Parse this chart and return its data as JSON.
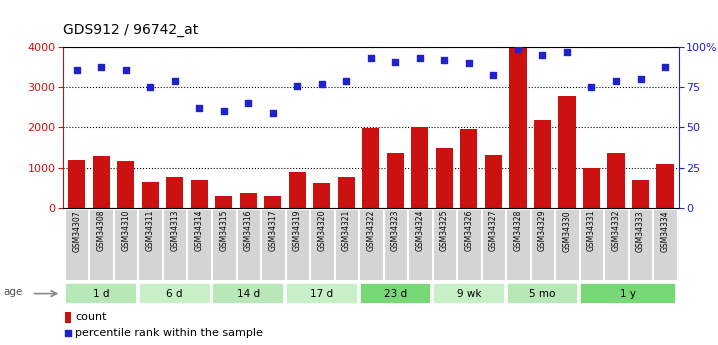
{
  "title": "GDS912 / 96742_at",
  "samples": [
    "GSM34307",
    "GSM34308",
    "GSM34310",
    "GSM34311",
    "GSM34313",
    "GSM34314",
    "GSM34315",
    "GSM34316",
    "GSM34317",
    "GSM34319",
    "GSM34320",
    "GSM34321",
    "GSM34322",
    "GSM34323",
    "GSM34324",
    "GSM34325",
    "GSM34326",
    "GSM34327",
    "GSM34328",
    "GSM34329",
    "GSM34330",
    "GSM34331",
    "GSM34332",
    "GSM34333",
    "GSM34334"
  ],
  "counts": [
    1200,
    1300,
    1175,
    640,
    760,
    680,
    300,
    375,
    300,
    880,
    620,
    760,
    1980,
    1360,
    2000,
    1500,
    1970,
    1310,
    4000,
    2180,
    2780,
    1000,
    1360,
    680,
    1100
  ],
  "percentile": [
    86,
    88,
    86,
    75,
    79,
    62,
    60,
    65,
    59,
    76,
    77,
    79,
    93,
    91,
    93,
    92,
    90,
    83,
    99,
    95,
    97,
    75,
    79,
    80,
    88
  ],
  "groups": [
    {
      "label": "1 d",
      "start": 0,
      "end": 3,
      "color": "#b8e8b8"
    },
    {
      "label": "6 d",
      "start": 3,
      "end": 6,
      "color": "#c8f0c8"
    },
    {
      "label": "14 d",
      "start": 6,
      "end": 9,
      "color": "#b8e8b8"
    },
    {
      "label": "17 d",
      "start": 9,
      "end": 12,
      "color": "#c8f0c8"
    },
    {
      "label": "23 d",
      "start": 12,
      "end": 15,
      "color": "#78d878"
    },
    {
      "label": "9 wk",
      "start": 15,
      "end": 18,
      "color": "#c8f0c8"
    },
    {
      "label": "5 mo",
      "start": 18,
      "end": 21,
      "color": "#b8e8b8"
    },
    {
      "label": "1 y",
      "start": 21,
      "end": 25,
      "color": "#78d878"
    }
  ],
  "bar_color": "#cc1111",
  "dot_color": "#2222cc",
  "ylim_left": [
    0,
    4000
  ],
  "ylim_right": [
    0,
    100
  ],
  "yticks_left": [
    0,
    1000,
    2000,
    3000,
    4000
  ],
  "yticks_right": [
    0,
    25,
    50,
    75,
    100
  ],
  "plot_bg": "#ffffff",
  "fig_bg": "#ffffff",
  "tick_bg": "#d8d8d8",
  "grid_color": "black"
}
